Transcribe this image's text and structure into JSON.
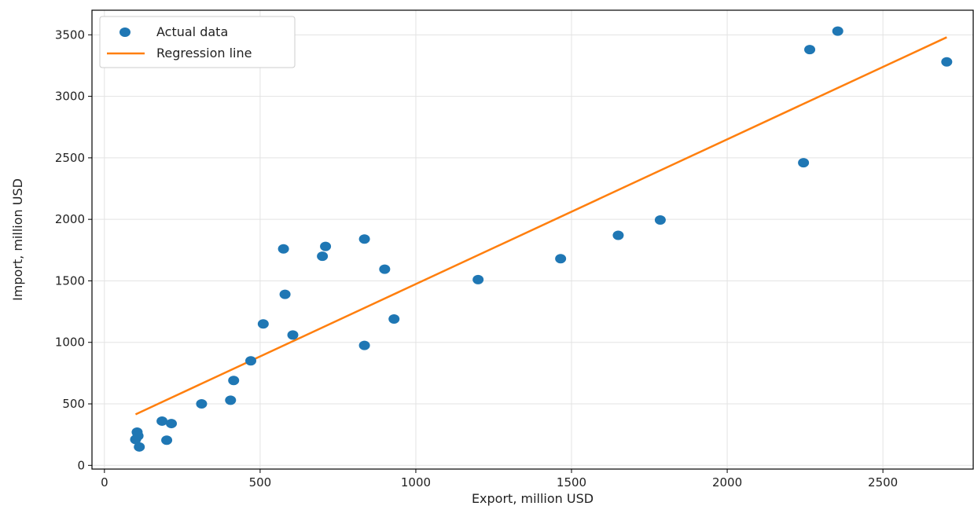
{
  "chart_data": {
    "type": "scatter",
    "title": "",
    "xlabel": "Export, million USD",
    "ylabel": "Import, million USD",
    "xlim": [
      -40,
      2790
    ],
    "ylim": [
      -30,
      3700
    ],
    "x_ticks": [
      0,
      500,
      1000,
      1500,
      2000,
      2500
    ],
    "y_ticks": [
      0,
      500,
      1000,
      1500,
      2000,
      2500,
      3000,
      3500
    ],
    "x_tick_labels": [
      "0",
      "500",
      "1000",
      "1500",
      "2000",
      "2500"
    ],
    "y_tick_labels": [
      "0",
      "500",
      "1000",
      "1500",
      "2000",
      "2500",
      "3000",
      "3500"
    ],
    "grid": true,
    "legend_position": "top-left",
    "series": [
      {
        "name": "Actual data",
        "kind": "scatter",
        "color": "#1f77b4",
        "points": [
          [
            100,
            210
          ],
          [
            105,
            270
          ],
          [
            108,
            240
          ],
          [
            112,
            150
          ],
          [
            185,
            360
          ],
          [
            200,
            205
          ],
          [
            215,
            340
          ],
          [
            312,
            500
          ],
          [
            405,
            530
          ],
          [
            415,
            690
          ],
          [
            470,
            850
          ],
          [
            510,
            1150
          ],
          [
            575,
            1760
          ],
          [
            580,
            1390
          ],
          [
            605,
            1060
          ],
          [
            700,
            1700
          ],
          [
            710,
            1780
          ],
          [
            835,
            1840
          ],
          [
            835,
            975
          ],
          [
            900,
            1595
          ],
          [
            930,
            1190
          ],
          [
            1200,
            1510
          ],
          [
            1465,
            1680
          ],
          [
            1650,
            1870
          ],
          [
            1785,
            1995
          ],
          [
            2245,
            2460
          ],
          [
            2265,
            3380
          ],
          [
            2355,
            3530
          ],
          [
            2705,
            3280
          ]
        ]
      },
      {
        "name": "Regression line",
        "kind": "line",
        "color": "#ff7f0e",
        "points": [
          [
            100,
            415
          ],
          [
            2705,
            3480
          ]
        ]
      }
    ]
  }
}
